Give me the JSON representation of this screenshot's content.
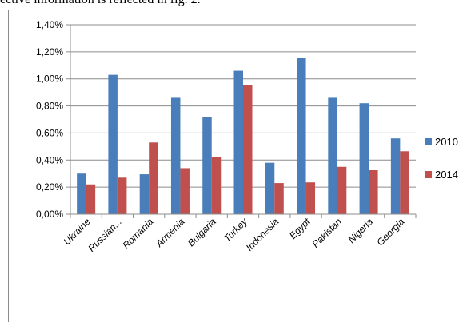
{
  "caption": {
    "text": "ective information is reflected in fig. 2."
  },
  "chart_data": {
    "type": "bar",
    "categories": [
      "Ukraine",
      "Russian...",
      "Romania",
      "Armenia",
      "Bulgaria",
      "Turkey",
      "Indonesia",
      "Egypt",
      "Pakistan",
      "Nigeria",
      "Georgia"
    ],
    "series": [
      {
        "name": "2010",
        "color": "#4a7ebb",
        "values": [
          0.3,
          1.03,
          0.295,
          0.86,
          0.715,
          1.06,
          0.38,
          1.155,
          0.86,
          0.82,
          0.56
        ]
      },
      {
        "name": "2014",
        "color": "#c0504d",
        "values": [
          0.22,
          0.27,
          0.53,
          0.34,
          0.425,
          0.955,
          0.23,
          0.235,
          0.35,
          0.325,
          0.465
        ]
      }
    ],
    "y_ticks": [
      "0,00%",
      "0,20%",
      "0,40%",
      "0,60%",
      "0,80%",
      "1,00%",
      "1,20%",
      "1,40%"
    ],
    "ylim": [
      0,
      1.4
    ],
    "y_unit": "percent",
    "grid": true,
    "legend_position": "right",
    "title": "",
    "xlabel": "",
    "ylabel": ""
  }
}
